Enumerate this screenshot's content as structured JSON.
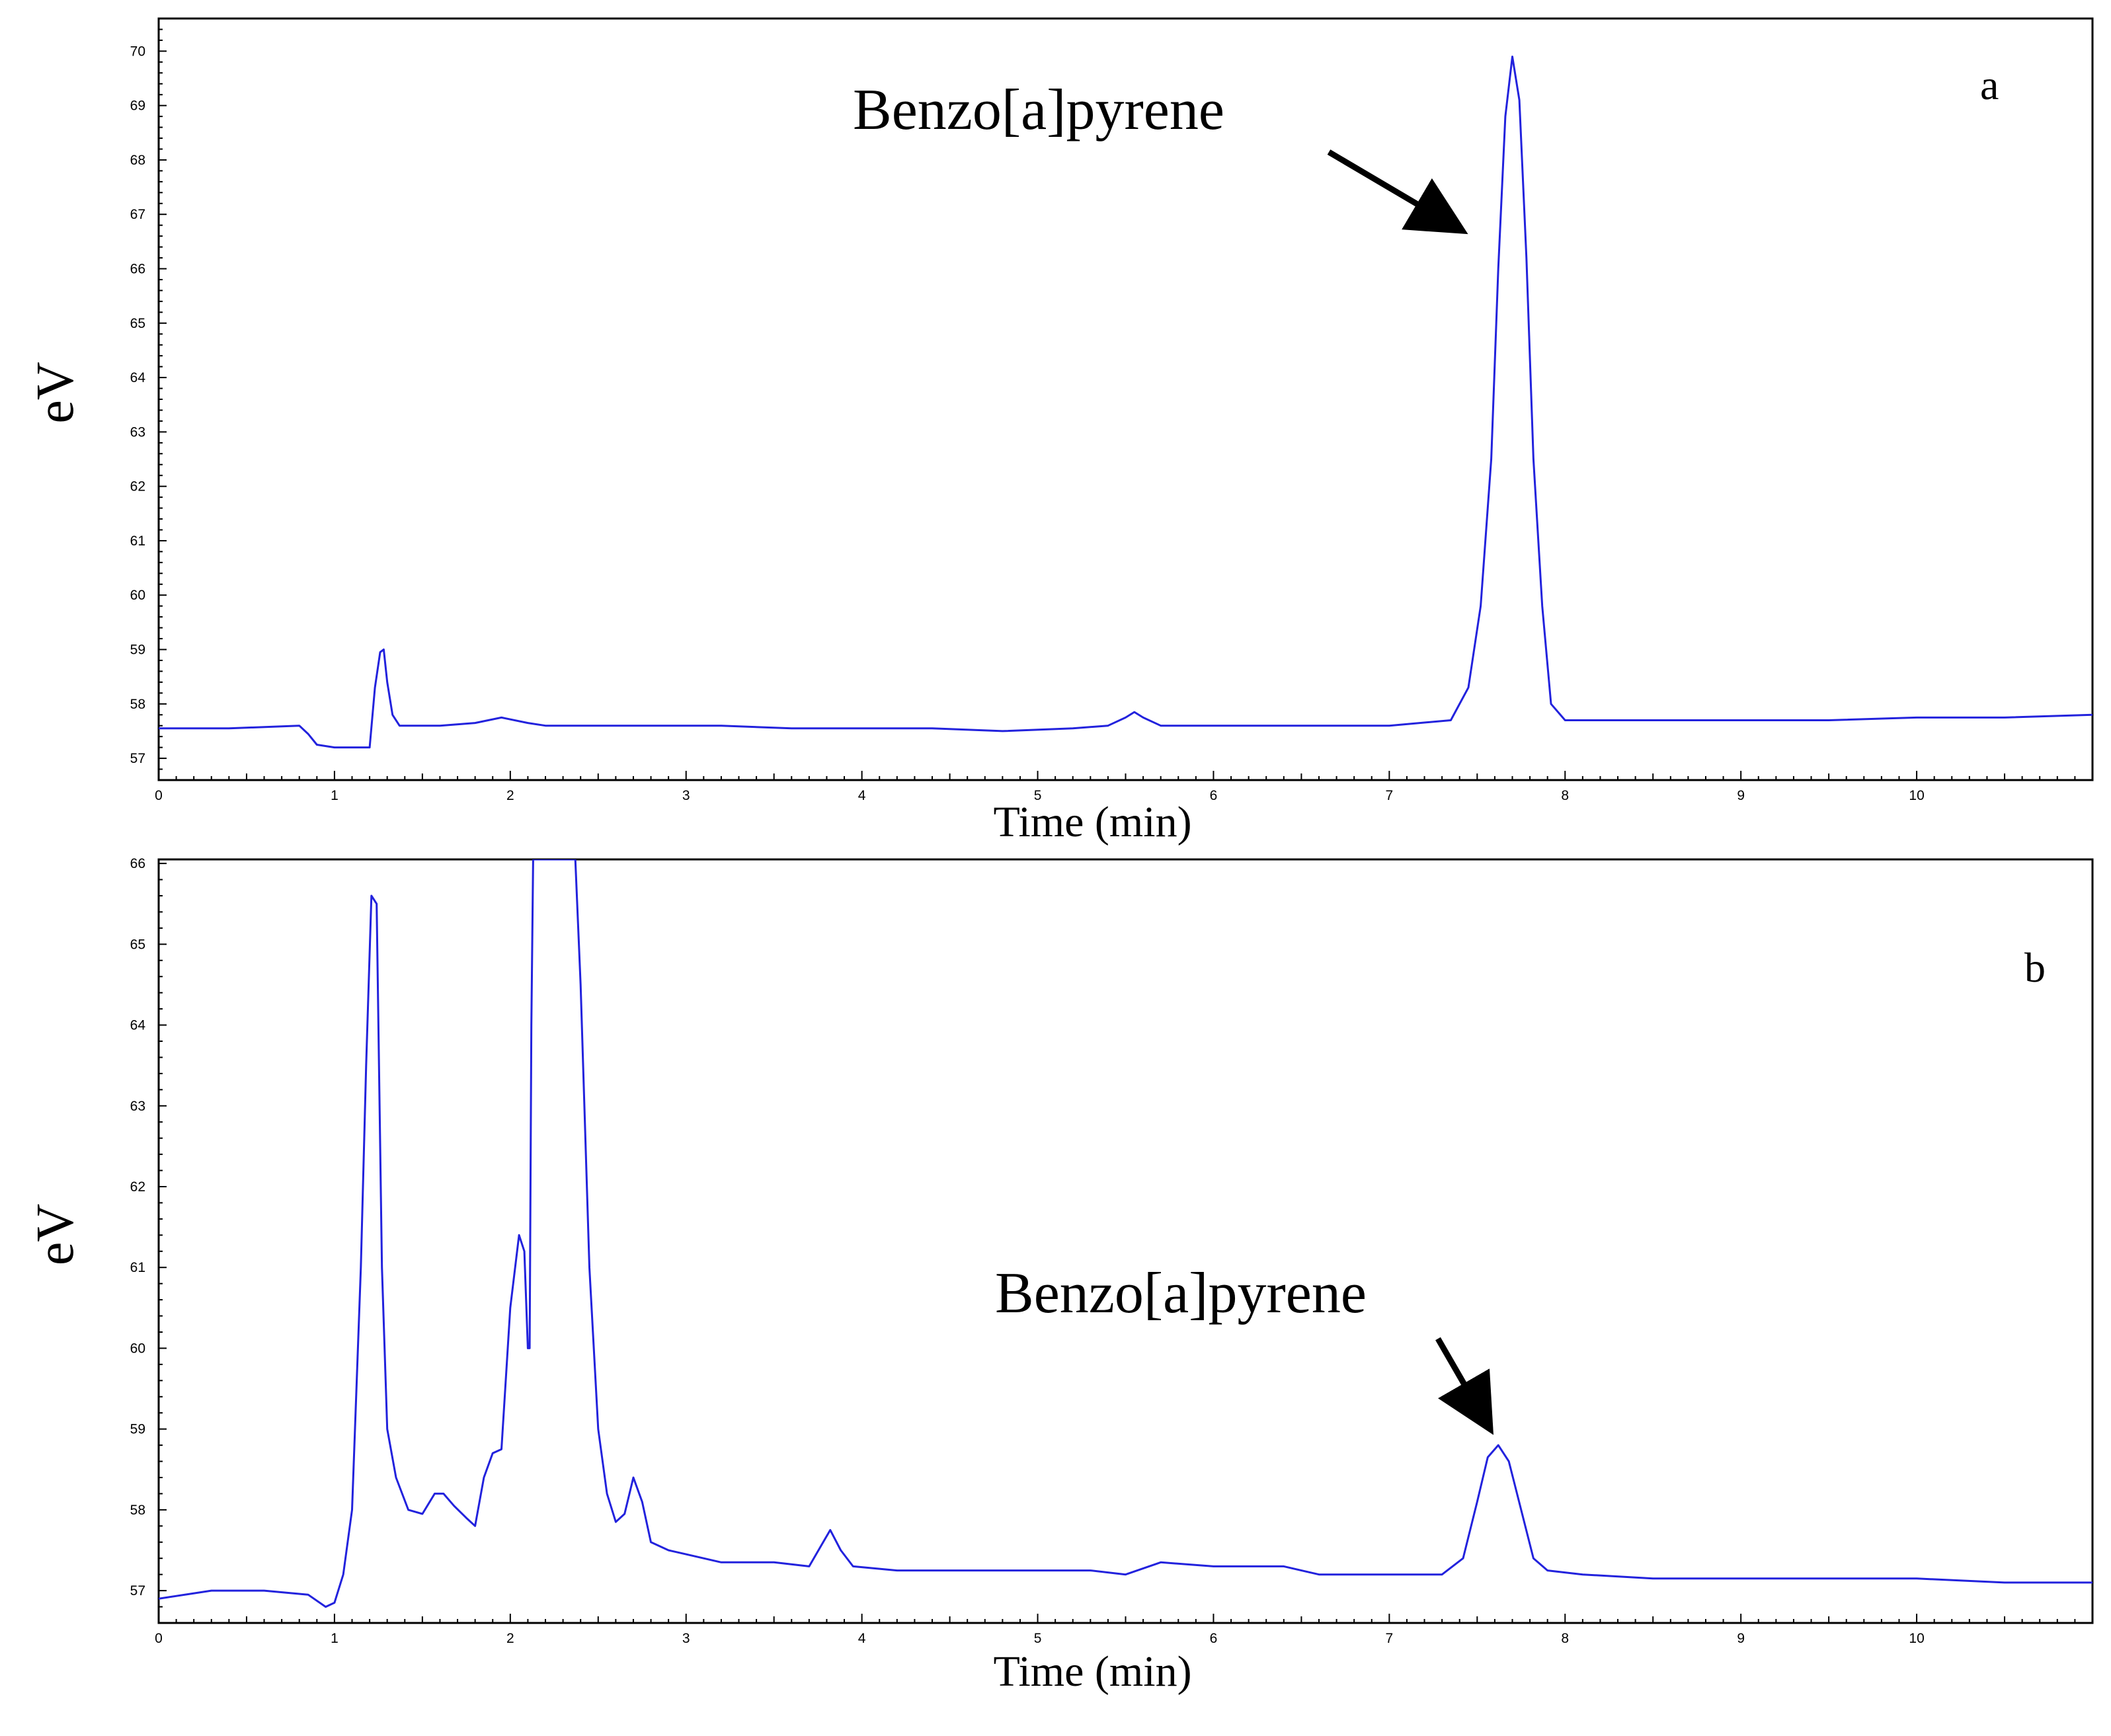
{
  "chart_data": [
    {
      "panel_label": "a",
      "type": "line",
      "xlabel": "Time (min)",
      "ylabel": "eV",
      "xlim": [
        0,
        11
      ],
      "ylim": [
        56.6,
        70.6
      ],
      "x_ticks": [
        0,
        1,
        2,
        3,
        4,
        5,
        6,
        7,
        8,
        9,
        10
      ],
      "y_ticks": [
        57,
        58,
        59,
        60,
        61,
        62,
        63,
        64,
        65,
        66,
        67,
        68,
        69,
        70
      ],
      "annotation": {
        "text": "Benzo[a]pyrene",
        "x": 7.7,
        "y": 69.9
      },
      "line_color": "#2222dd",
      "series": [
        {
          "x": [
            0,
            0.4,
            0.8,
            0.85,
            0.9,
            1.0,
            1.1,
            1.2,
            1.23,
            1.26,
            1.28,
            1.3,
            1.33,
            1.37,
            1.45,
            1.6,
            1.8,
            1.95,
            2.1,
            2.2,
            2.4,
            2.8,
            3.2,
            3.6,
            4.0,
            4.4,
            4.8,
            5.2,
            5.4,
            5.5,
            5.55,
            5.6,
            5.7,
            6.0,
            6.5,
            7.0,
            7.35,
            7.45,
            7.52,
            7.58,
            7.62,
            7.66,
            7.7,
            7.74,
            7.78,
            7.82,
            7.87,
            7.92,
            8.0,
            8.5,
            9.0,
            9.5,
            10.0,
            10.5,
            11.0
          ],
          "y": [
            57.55,
            57.55,
            57.6,
            57.45,
            57.25,
            57.2,
            57.2,
            57.2,
            58.3,
            58.95,
            59.0,
            58.4,
            57.8,
            57.6,
            57.6,
            57.6,
            57.65,
            57.75,
            57.65,
            57.6,
            57.6,
            57.6,
            57.6,
            57.55,
            57.55,
            57.55,
            57.5,
            57.55,
            57.6,
            57.75,
            57.85,
            57.75,
            57.6,
            57.6,
            57.6,
            57.6,
            57.7,
            58.3,
            59.8,
            62.5,
            66.0,
            68.8,
            69.9,
            69.1,
            66.2,
            62.5,
            59.8,
            58.0,
            57.7,
            57.7,
            57.7,
            57.7,
            57.75,
            57.75,
            57.8
          ]
        }
      ]
    },
    {
      "panel_label": "b",
      "type": "line",
      "xlabel": "Time (min)",
      "ylabel": "eV",
      "xlim": [
        0,
        11
      ],
      "ylim": [
        56.6,
        66.05
      ],
      "x_ticks": [
        0,
        1,
        2,
        3,
        4,
        5,
        6,
        7,
        8,
        9,
        10
      ],
      "y_ticks": [
        57,
        58,
        59,
        60,
        61,
        62,
        63,
        64,
        65,
        66
      ],
      "annotation": {
        "text": "Benzo[a]pyrene",
        "x": 7.62,
        "y": 58.8
      },
      "line_color": "#2222dd",
      "series": [
        {
          "x": [
            0,
            0.3,
            0.6,
            0.85,
            0.95,
            1.0,
            1.05,
            1.1,
            1.15,
            1.18,
            1.21,
            1.24,
            1.27,
            1.3,
            1.35,
            1.42,
            1.5,
            1.57,
            1.62,
            1.68,
            1.75,
            1.8,
            1.85,
            1.9,
            1.95,
            2.0,
            2.05,
            2.08,
            2.1,
            2.11,
            2.12,
            2.13,
            2.14,
            2.16,
            2.2,
            2.3,
            2.37,
            2.4,
            2.45,
            2.5,
            2.55,
            2.6,
            2.65,
            2.7,
            2.75,
            2.8,
            2.9,
            3.0,
            3.2,
            3.5,
            3.7,
            3.78,
            3.82,
            3.88,
            3.95,
            4.2,
            4.6,
            5.0,
            5.3,
            5.5,
            5.7,
            6.0,
            6.4,
            6.6,
            7.0,
            7.3,
            7.42,
            7.5,
            7.56,
            7.62,
            7.68,
            7.75,
            7.82,
            7.9,
            8.1,
            8.5,
            9.0,
            9.5,
            10.0,
            10.5,
            11.0
          ],
          "y": [
            56.9,
            57.0,
            57.0,
            56.95,
            56.8,
            56.85,
            57.2,
            58.0,
            61.0,
            63.5,
            65.6,
            65.5,
            61.0,
            59.0,
            58.4,
            58.0,
            57.95,
            58.2,
            58.2,
            58.05,
            57.9,
            57.8,
            58.4,
            58.7,
            58.75,
            60.5,
            61.4,
            61.2,
            60.0,
            60.0,
            64.0,
            66.05,
            66.05,
            66.05,
            66.05,
            66.05,
            66.05,
            64.5,
            61.0,
            59.0,
            58.2,
            57.85,
            57.95,
            58.4,
            58.1,
            57.6,
            57.5,
            57.45,
            57.35,
            57.35,
            57.3,
            57.6,
            57.75,
            57.5,
            57.3,
            57.25,
            57.25,
            57.25,
            57.25,
            57.2,
            57.35,
            57.3,
            57.3,
            57.2,
            57.2,
            57.2,
            57.4,
            58.1,
            58.65,
            58.8,
            58.6,
            58.0,
            57.4,
            57.25,
            57.2,
            57.15,
            57.15,
            57.15,
            57.15,
            57.1,
            57.1
          ]
        }
      ]
    }
  ]
}
